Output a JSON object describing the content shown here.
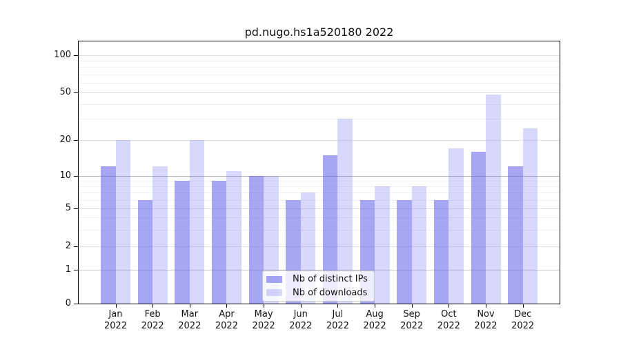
{
  "title": "pd.nugo.hs1a520180 2022",
  "chart_data": {
    "type": "bar",
    "title": "pd.nugo.hs1a520180 2022",
    "categories": [
      "Jan 2022",
      "Feb 2022",
      "Mar 2022",
      "Apr 2022",
      "May 2022",
      "Jun 2022",
      "Jul 2022",
      "Aug 2022",
      "Sep 2022",
      "Oct 2022",
      "Nov 2022",
      "Dec 2022"
    ],
    "series": [
      {
        "name": "Nb of distinct IPs",
        "color": "#a4a4f0",
        "fill": "rgba(92,92,235,0.55)",
        "values": [
          12,
          6,
          9,
          9,
          10,
          6,
          15,
          6,
          6,
          6,
          16,
          12
        ]
      },
      {
        "name": "Nb of downloads",
        "color": "#dadaf8",
        "fill": "rgba(92,92,235,0.24)",
        "values": [
          20,
          12,
          20,
          11,
          10,
          7,
          30,
          8,
          8,
          17,
          48,
          25
        ]
      }
    ],
    "y_axis": {
      "scale": "symlog",
      "ticks": [
        0,
        1,
        2,
        5,
        10,
        20,
        50,
        100
      ],
      "minor_ticks": [
        3,
        4,
        6,
        7,
        8,
        9,
        30,
        40,
        60,
        70,
        80,
        90
      ],
      "range": [
        0,
        130
      ]
    },
    "x_axis": {
      "year": "2022"
    },
    "legend": {
      "position": "lower center"
    },
    "grid": {
      "enabled": true,
      "major_color": "#e2e2e2",
      "minor_color": "#f0f0f0",
      "emphasized": {
        "1": "#c9c9c9",
        "10": "#b4b4b4"
      }
    },
    "background": "#ffffff",
    "axis_color": "#000000"
  }
}
